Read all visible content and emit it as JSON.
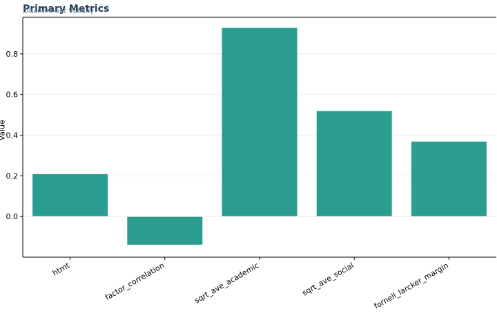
{
  "chart_data": {
    "type": "bar",
    "title": "Primary Metrics",
    "subtitle": "Discriminant Validity",
    "xlabel": "",
    "ylabel": "Value",
    "categories": [
      "htmt",
      "factor_correlation",
      "sqrt_ave_academic",
      "sqrt_ave_social",
      "fornell_larcker_margin"
    ],
    "values": [
      0.21,
      -0.14,
      0.93,
      0.52,
      0.37
    ],
    "ylim": [
      -0.2,
      0.98
    ],
    "yticks": [
      0.0,
      0.2,
      0.4,
      0.6,
      0.8
    ],
    "ytick_labels": [
      "0.0",
      "0.2",
      "0.4",
      "0.6",
      "0.8"
    ],
    "bar_color": "#2a9d8f",
    "grid": true,
    "legend": "none"
  }
}
